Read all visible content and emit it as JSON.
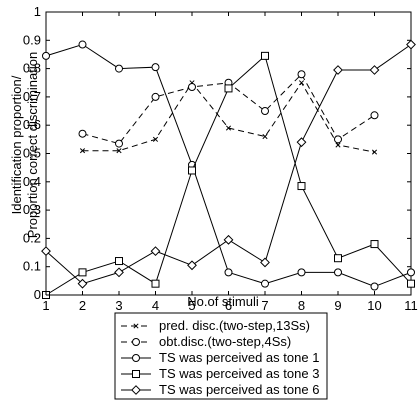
{
  "chart_data": {
    "type": "line",
    "xlabel": "No.of stimuli",
    "ylabel_lines": [
      "Identification proportion/",
      "Proportion correct discrimination"
    ],
    "xlim": [
      1,
      11
    ],
    "ylim": [
      0,
      1
    ],
    "xticks": [
      1,
      2,
      3,
      4,
      5,
      6,
      7,
      8,
      9,
      10,
      11
    ],
    "yticks": [
      0,
      0.1,
      0.2,
      0.3,
      0.4,
      0.5,
      0.6,
      0.7,
      0.8,
      0.9,
      1
    ],
    "ytick_labels": [
      "0",
      "0.1",
      "0.2",
      "0.3",
      "0.4",
      "0.5",
      "0.6",
      "0.7",
      "0.8",
      "0.9",
      "1"
    ],
    "grid": false,
    "legend_position": "below",
    "series": [
      {
        "name": "pred. disc.(two-step,13Ss)",
        "line": "dashed",
        "marker": "x",
        "x": [
          2,
          3,
          4,
          5,
          6,
          7,
          8,
          9,
          10
        ],
        "y": [
          0.51,
          0.51,
          0.55,
          0.75,
          0.59,
          0.56,
          0.75,
          0.53,
          0.505
        ]
      },
      {
        "name": "obt.disc.(two-step,4Ss)",
        "line": "dashed",
        "marker": "circle",
        "x": [
          2,
          3,
          4,
          5,
          6,
          7,
          8,
          9,
          10
        ],
        "y": [
          0.57,
          0.535,
          0.7,
          0.735,
          0.75,
          0.65,
          0.78,
          0.55,
          0.635
        ]
      },
      {
        "name": "TS was perceived as tone 1",
        "line": "solid",
        "marker": "circle",
        "x": [
          1,
          2,
          3,
          4,
          5,
          6,
          7,
          8,
          9,
          10,
          11
        ],
        "y": [
          0.845,
          0.885,
          0.8,
          0.805,
          0.46,
          0.08,
          0.04,
          0.08,
          0.08,
          0.03,
          0.08
        ]
      },
      {
        "name": "TS was perceived as tone 3",
        "line": "solid",
        "marker": "square",
        "x": [
          1,
          2,
          3,
          4,
          5,
          6,
          7,
          8,
          9,
          10,
          11
        ],
        "y": [
          0.0,
          0.08,
          0.12,
          0.04,
          0.44,
          0.73,
          0.845,
          0.385,
          0.13,
          0.18,
          0.04
        ]
      },
      {
        "name": "TS was perceived as tone 6",
        "line": "solid",
        "marker": "diamond",
        "x": [
          1,
          2,
          3,
          4,
          5,
          6,
          7,
          8,
          9,
          10,
          11
        ],
        "y": [
          0.155,
          0.04,
          0.08,
          0.155,
          0.105,
          0.195,
          0.115,
          0.54,
          0.795,
          0.795,
          0.885
        ]
      }
    ]
  }
}
